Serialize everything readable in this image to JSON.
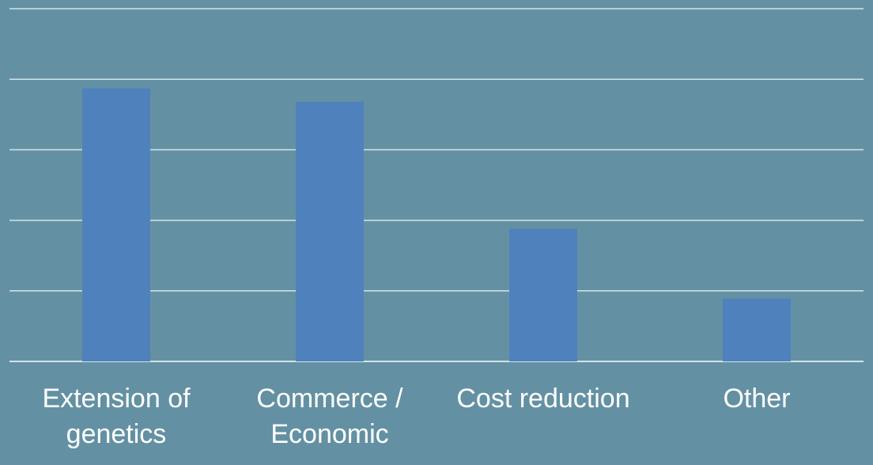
{
  "chart_data": {
    "type": "bar",
    "title": "",
    "xlabel": "",
    "ylabel": "",
    "categories": [
      [
        "Extension of",
        "genetics"
      ],
      [
        "Commerce /",
        "Economic"
      ],
      [
        "Cost reduction"
      ],
      [
        "Other"
      ]
    ],
    "values": [
      3.87,
      3.68,
      1.88,
      0.89
    ],
    "ylim": [
      0,
      5
    ],
    "yticks": [
      0,
      1,
      2,
      3,
      4,
      5
    ],
    "tick_labels_shown": false,
    "grid": true,
    "legend": "none",
    "colors": {
      "background": "#6391a3",
      "bar": "#4f81bd",
      "gridline": "#d6e3e8",
      "label_text": "#ffffff"
    }
  }
}
